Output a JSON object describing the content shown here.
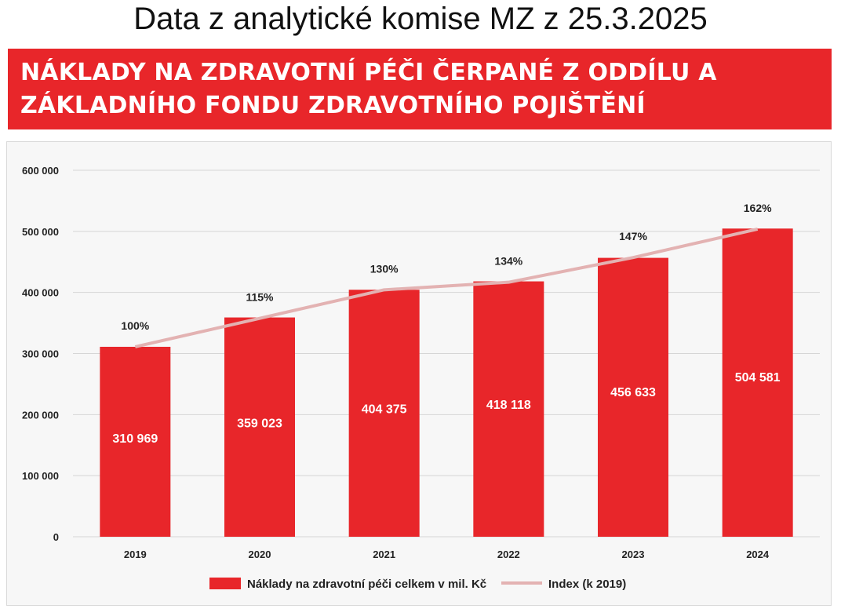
{
  "slide_title": "Data z analytické komise MZ z 25.3.2025",
  "banner": {
    "line1": "NÁKLADY NA ZDRAVOTNÍ PÉČI ČERPANÉ Z ODDÍLU A",
    "line2": "ZÁKLADNÍHO FONDU ZDRAVOTNÍHO POJIŠTĚNÍ"
  },
  "colors": {
    "bar": "#e8262a",
    "line": "#e3b2b2",
    "banner": "#e8262a"
  },
  "chart_data": {
    "type": "bar",
    "categories": [
      "2019",
      "2020",
      "2021",
      "2022",
      "2023",
      "2024"
    ],
    "ylim": [
      0,
      600000
    ],
    "yticks": [
      0,
      100000,
      200000,
      300000,
      400000,
      500000,
      600000
    ],
    "ytick_labels": [
      "0",
      "100 000",
      "200 000",
      "300 000",
      "400 000",
      "500 000",
      "600 000"
    ],
    "grid": true,
    "legend_position": "bottom",
    "series": [
      {
        "name": "Náklady na zdravotní péči celkem v mil. Kč",
        "kind": "bar",
        "values": [
          310969,
          359023,
          404375,
          418118,
          456633,
          504581
        ],
        "labels": [
          "310 969",
          "359 023",
          "404 375",
          "418 118",
          "456 633",
          "504 581"
        ]
      },
      {
        "name": "Index (k 2019)",
        "kind": "line",
        "values": [
          100,
          115,
          130,
          134,
          147,
          162
        ],
        "labels": [
          "100%",
          "115%",
          "130%",
          "134%",
          "147%",
          "162%"
        ]
      }
    ]
  }
}
